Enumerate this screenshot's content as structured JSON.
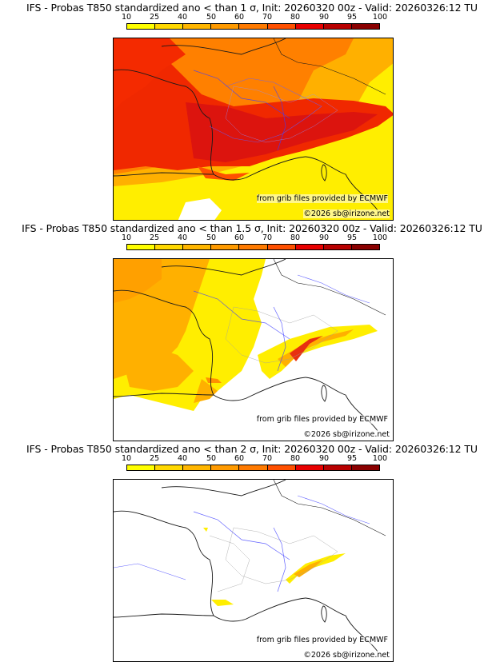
{
  "legend": {
    "ticks": [
      "10",
      "25",
      "40",
      "50",
      "60",
      "70",
      "80",
      "90",
      "95",
      "100"
    ],
    "colors": [
      "#ffff00",
      "#ffd800",
      "#ffb600",
      "#ff9a00",
      "#ff7a00",
      "#ff5000",
      "#e80000",
      "#b80000",
      "#8a0000"
    ]
  },
  "panels": [
    {
      "title": "IFS - Probas T850  standardized ano < than 1 σ, Init: 20260320 00z - Valid: 20260326:12 TU",
      "source": "from grib files provided by ECMWF",
      "copyright": "©2026 sb@irizone.net"
    },
    {
      "title": "IFS - Probas T850  standardized ano < than 1.5 σ, Init: 20260320 00z - Valid: 20260326:12 TU",
      "source": "from grib files provided by ECMWF",
      "copyright": "©2026 sb@irizone.net"
    },
    {
      "title": "IFS - Probas T850  standardized ano < than 2 σ, Init: 20260320 00z - Valid: 20260326:12 TU",
      "source": "from grib files provided by ECMWF",
      "copyright": "©2026 sb@irizone.net"
    }
  ]
}
